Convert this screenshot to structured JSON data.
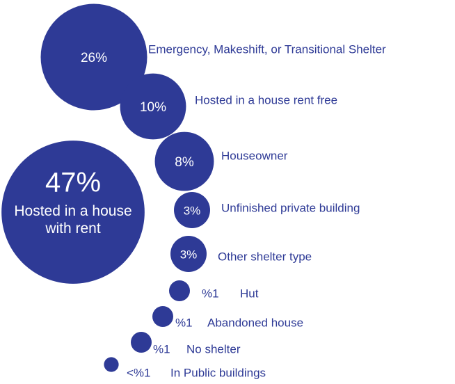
{
  "chart_data": {
    "type": "bubble",
    "color": "#2e3a96",
    "categories": [
      "Hosted in a house with rent",
      "Emergency, Makeshift, or Transitional Shelter",
      "Hosted in a house rent free",
      "Houseowner",
      "Unfinished private building",
      "Other shelter type",
      "Hut",
      "Abandoned house",
      "No shelter",
      "In Public buildings"
    ],
    "values": [
      47,
      26,
      10,
      8,
      3,
      3,
      1,
      1,
      1,
      0.5
    ],
    "value_labels": [
      "47%",
      "26%",
      "10%",
      "8%",
      "3%",
      "3%",
      "%1",
      "%1",
      "%1",
      "<%1"
    ]
  }
}
